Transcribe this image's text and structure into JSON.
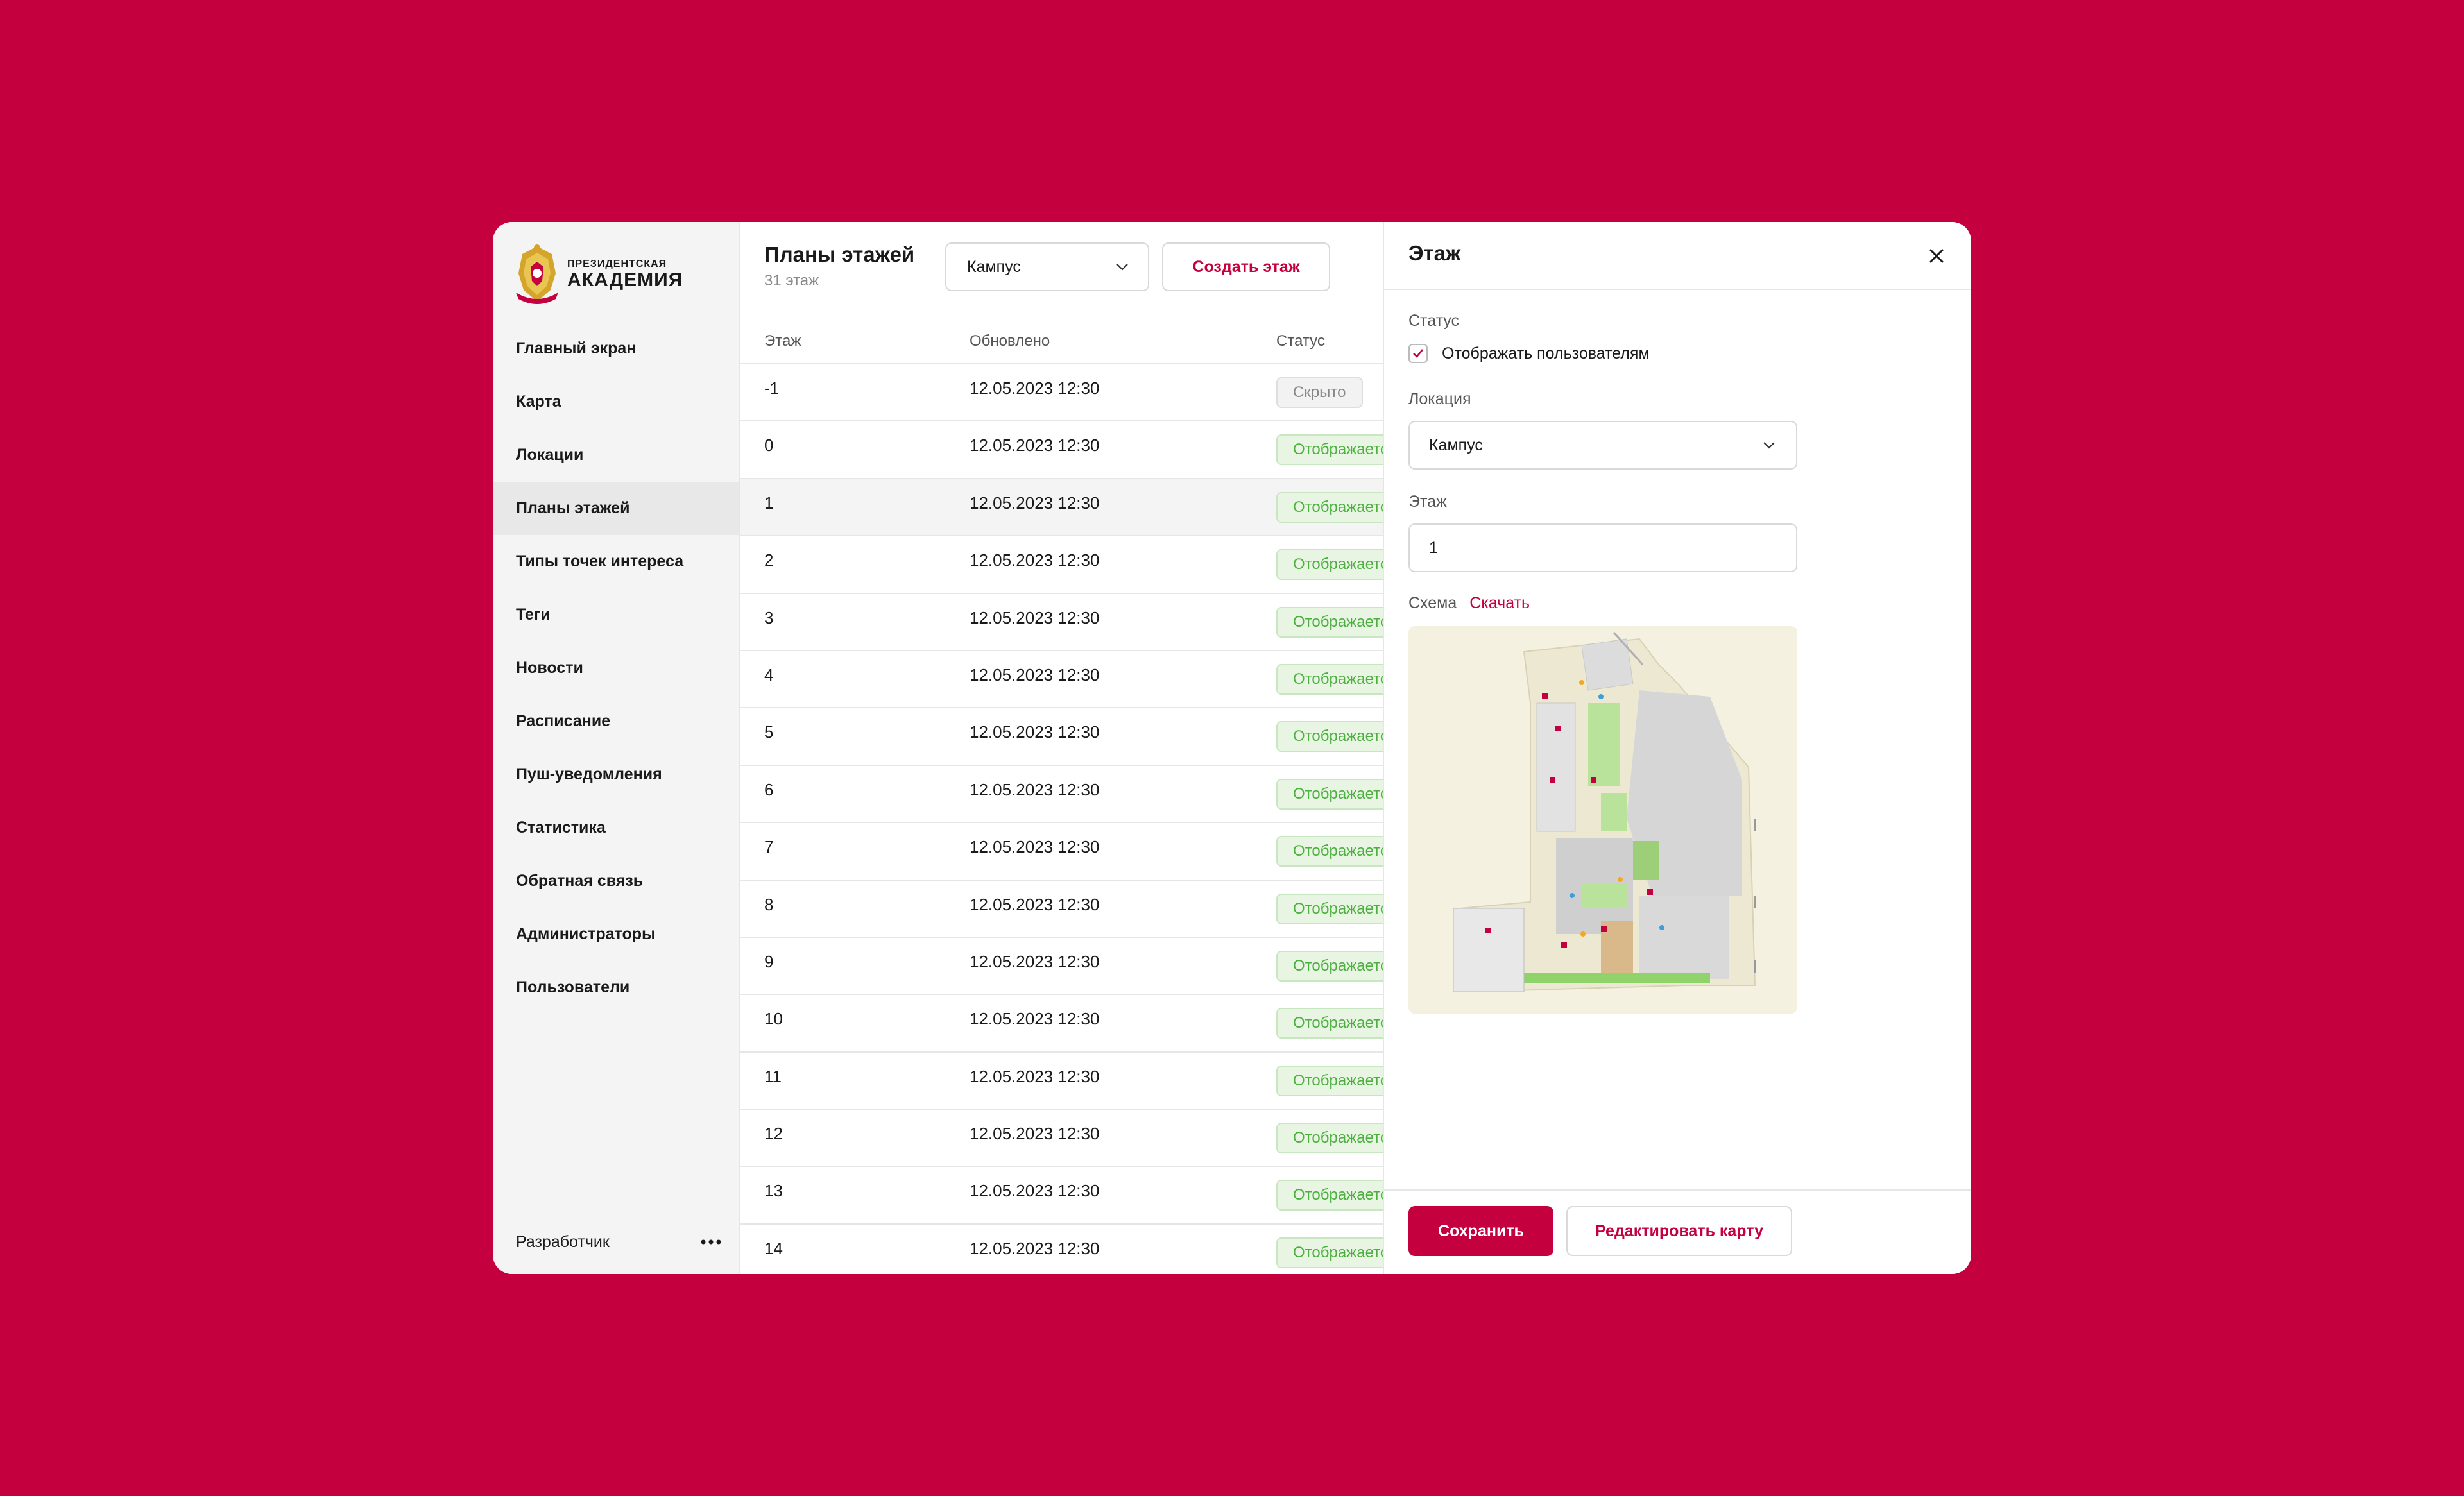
{
  "brand": {
    "logo_small": "ПРЕЗИДЕНТСКАЯ",
    "logo_big": "АКАДЕМИЯ",
    "accent": "#c4003f"
  },
  "sidebar": {
    "items": [
      {
        "label": "Главный экран"
      },
      {
        "label": "Карта"
      },
      {
        "label": "Локации"
      },
      {
        "label": "Планы этажей"
      },
      {
        "label": "Типы точек интереса"
      },
      {
        "label": "Теги"
      },
      {
        "label": "Новости"
      },
      {
        "label": "Расписание"
      },
      {
        "label": "Пуш-уведомления"
      },
      {
        "label": "Статистика"
      },
      {
        "label": "Обратная связь"
      },
      {
        "label": "Администраторы"
      },
      {
        "label": "Пользователи"
      }
    ],
    "active": "Планы этажей",
    "footer_user": "Разработчик",
    "more_icon": "more-dots-icon"
  },
  "main": {
    "title": "Планы этажей",
    "subtitle": "31 этаж",
    "location_select": "Кампус",
    "create_button": "Создать этаж",
    "columns": {
      "floor": "Этаж",
      "updated": "Обновлено",
      "status": "Статус"
    },
    "rows": [
      {
        "floor": "-1",
        "updated": "12.05.2023 12:30",
        "status": "Скрыто"
      },
      {
        "floor": "0",
        "updated": "12.05.2023 12:30",
        "status": "Отображается"
      },
      {
        "floor": "1",
        "updated": "12.05.2023 12:30",
        "status": "Отображается"
      },
      {
        "floor": "2",
        "updated": "12.05.2023 12:30",
        "status": "Отображается"
      },
      {
        "floor": "3",
        "updated": "12.05.2023 12:30",
        "status": "Отображается"
      },
      {
        "floor": "4",
        "updated": "12.05.2023 12:30",
        "status": "Отображается"
      },
      {
        "floor": "5",
        "updated": "12.05.2023 12:30",
        "status": "Отображается"
      },
      {
        "floor": "6",
        "updated": "12.05.2023 12:30",
        "status": "Отображается"
      },
      {
        "floor": "7",
        "updated": "12.05.2023 12:30",
        "status": "Отображается"
      },
      {
        "floor": "8",
        "updated": "12.05.2023 12:30",
        "status": "Отображается"
      },
      {
        "floor": "9",
        "updated": "12.05.2023 12:30",
        "status": "Отображается"
      },
      {
        "floor": "10",
        "updated": "12.05.2023 12:30",
        "status": "Отображается"
      },
      {
        "floor": "11",
        "updated": "12.05.2023 12:30",
        "status": "Отображается"
      },
      {
        "floor": "12",
        "updated": "12.05.2023 12:30",
        "status": "Отображается"
      },
      {
        "floor": "13",
        "updated": "12.05.2023 12:30",
        "status": "Отображается"
      },
      {
        "floor": "14",
        "updated": "12.05.2023 12:30",
        "status": "Отображается"
      }
    ],
    "selected_floor": "1",
    "status_colors": {
      "shown": "#4caf3f",
      "hidden": "#888888"
    }
  },
  "panel": {
    "title": "Этаж",
    "close_icon": "close-icon",
    "status_label": "Статус",
    "show_to_users_label": "Отображать пользователям",
    "show_to_users_checked": true,
    "location_label": "Локация",
    "location_value": "Кампус",
    "floor_label": "Этаж",
    "floor_value": "1",
    "scheme_label": "Схема",
    "download_link": "Скачать",
    "save_button": "Сохранить",
    "edit_map_button": "Редактировать карту"
  }
}
